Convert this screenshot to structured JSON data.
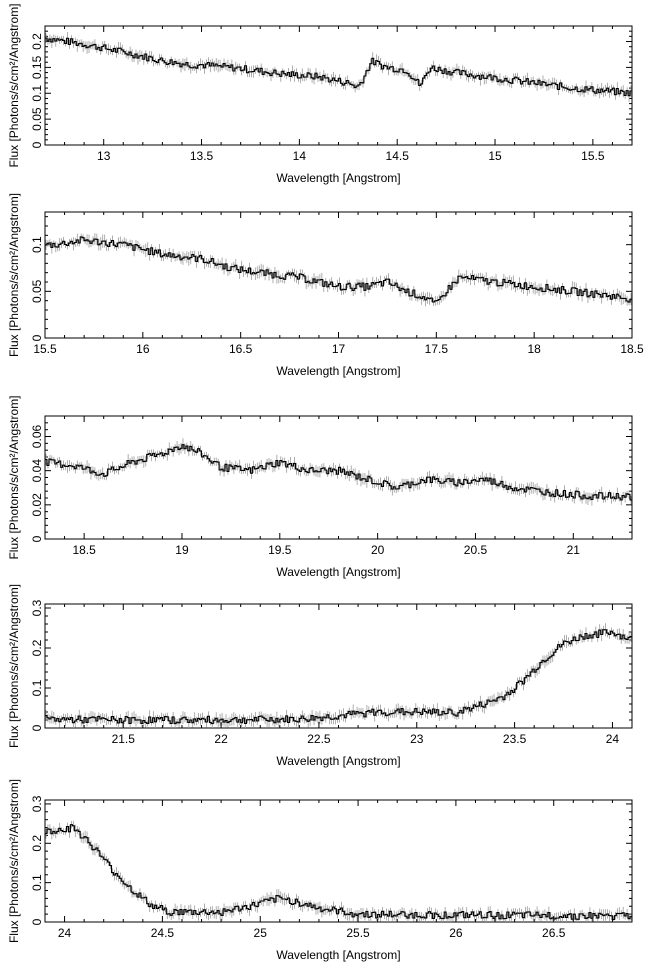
{
  "chart_data": [
    {
      "type": "line",
      "xlabel": "Wavelength [Angstrom]",
      "ylabel": "Flux [Photons/s/cm²/Angstrom]",
      "xlim": [
        12.7,
        15.7
      ],
      "ylim": [
        0,
        0.23
      ],
      "xticks": [
        13,
        13.5,
        14,
        14.5,
        15,
        15.5
      ],
      "yticks": [
        0,
        0.05,
        0.1,
        0.15,
        0.2
      ],
      "grid": false,
      "series": [
        {
          "values": [
            [
              12.7,
              0.207
            ],
            [
              12.9,
              0.195
            ],
            [
              13.1,
              0.18
            ],
            [
              13.3,
              0.163
            ],
            [
              13.45,
              0.155
            ],
            [
              13.5,
              0.155
            ],
            [
              13.7,
              0.148
            ],
            [
              13.9,
              0.138
            ],
            [
              14.1,
              0.132
            ],
            [
              14.25,
              0.12
            ],
            [
              14.3,
              0.112
            ],
            [
              14.33,
              0.13
            ],
            [
              14.37,
              0.162
            ],
            [
              14.45,
              0.15
            ],
            [
              14.55,
              0.145
            ],
            [
              14.62,
              0.115
            ],
            [
              14.67,
              0.15
            ],
            [
              14.8,
              0.14
            ],
            [
              15.0,
              0.13
            ],
            [
              15.2,
              0.12
            ],
            [
              15.4,
              0.11
            ],
            [
              15.55,
              0.105
            ],
            [
              15.7,
              0.1
            ]
          ]
        }
      ]
    },
    {
      "type": "line",
      "xlabel": "Wavelength [Angstrom]",
      "ylabel": "Flux [Photons/s/cm²/Angstrom]",
      "xlim": [
        15.5,
        18.5
      ],
      "ylim": [
        0,
        0.135
      ],
      "xticks": [
        15.5,
        16,
        16.5,
        17,
        17.5,
        18,
        18.5
      ],
      "yticks": [
        0,
        0.05,
        0.1
      ],
      "grid": false,
      "series": [
        {
          "values": [
            [
              15.55,
              0.1
            ],
            [
              15.7,
              0.105
            ],
            [
              15.9,
              0.1
            ],
            [
              16.1,
              0.09
            ],
            [
              16.3,
              0.085
            ],
            [
              16.45,
              0.075
            ],
            [
              16.6,
              0.07
            ],
            [
              16.8,
              0.065
            ],
            [
              17.0,
              0.055
            ],
            [
              17.15,
              0.055
            ],
            [
              17.25,
              0.06
            ],
            [
              17.35,
              0.05
            ],
            [
              17.45,
              0.043
            ],
            [
              17.5,
              0.035
            ],
            [
              17.55,
              0.05
            ],
            [
              17.62,
              0.065
            ],
            [
              17.8,
              0.06
            ],
            [
              18.0,
              0.055
            ],
            [
              18.2,
              0.05
            ],
            [
              18.4,
              0.045
            ],
            [
              18.5,
              0.042
            ]
          ]
        }
      ]
    },
    {
      "type": "line",
      "xlabel": "Wavelength [Angstrom]",
      "ylabel": "Flux [Photons/s/cm²/Angstrom]",
      "xlim": [
        18.3,
        21.3
      ],
      "ylim": [
        0,
        0.072
      ],
      "xticks": [
        18.5,
        19,
        19.5,
        20,
        20.5,
        21
      ],
      "yticks": [
        0,
        0.02,
        0.04,
        0.06
      ],
      "grid": false,
      "series": [
        {
          "values": [
            [
              18.3,
              0.045
            ],
            [
              18.45,
              0.043
            ],
            [
              18.6,
              0.038
            ],
            [
              18.75,
              0.045
            ],
            [
              18.9,
              0.05
            ],
            [
              19.0,
              0.055
            ],
            [
              19.1,
              0.05
            ],
            [
              19.2,
              0.042
            ],
            [
              19.35,
              0.04
            ],
            [
              19.5,
              0.045
            ],
            [
              19.65,
              0.04
            ],
            [
              19.8,
              0.04
            ],
            [
              19.95,
              0.035
            ],
            [
              20.1,
              0.03
            ],
            [
              20.25,
              0.035
            ],
            [
              20.4,
              0.033
            ],
            [
              20.55,
              0.035
            ],
            [
              20.7,
              0.03
            ],
            [
              20.9,
              0.027
            ],
            [
              21.1,
              0.025
            ],
            [
              21.3,
              0.025
            ]
          ]
        }
      ]
    },
    {
      "type": "line",
      "xlabel": "Wavelength [Angstrom]",
      "ylabel": "Flux [Photons/s/cm²/Angstrom]",
      "xlim": [
        21.1,
        24.1
      ],
      "ylim": [
        0,
        0.31
      ],
      "xticks": [
        21.5,
        22,
        22.5,
        23,
        23.5,
        24
      ],
      "yticks": [
        0,
        0.1,
        0.2,
        0.3
      ],
      "grid": false,
      "series": [
        {
          "values": [
            [
              21.1,
              0.022
            ],
            [
              21.5,
              0.02
            ],
            [
              22.0,
              0.02
            ],
            [
              22.4,
              0.022
            ],
            [
              22.6,
              0.03
            ],
            [
              22.8,
              0.04
            ],
            [
              23.0,
              0.04
            ],
            [
              23.2,
              0.038
            ],
            [
              23.35,
              0.06
            ],
            [
              23.45,
              0.08
            ],
            [
              23.55,
              0.12
            ],
            [
              23.65,
              0.17
            ],
            [
              23.75,
              0.21
            ],
            [
              23.85,
              0.23
            ],
            [
              24.0,
              0.24
            ],
            [
              24.1,
              0.22
            ]
          ]
        }
      ]
    },
    {
      "type": "line",
      "xlabel": "Wavelength [Angstrom]",
      "ylabel": "Flux [Photons/s/cm²/Angstrom]",
      "xlim": [
        23.9,
        26.9
      ],
      "ylim": [
        0,
        0.31
      ],
      "xticks": [
        24,
        24.5,
        25,
        25.5,
        26,
        26.5
      ],
      "yticks": [
        0,
        0.1,
        0.2,
        0.3
      ],
      "grid": false,
      "series": [
        {
          "values": [
            [
              23.9,
              0.23
            ],
            [
              24.05,
              0.24
            ],
            [
              24.15,
              0.19
            ],
            [
              24.25,
              0.13
            ],
            [
              24.35,
              0.08
            ],
            [
              24.45,
              0.04
            ],
            [
              24.55,
              0.025
            ],
            [
              24.8,
              0.025
            ],
            [
              24.95,
              0.04
            ],
            [
              25.1,
              0.06
            ],
            [
              25.2,
              0.05
            ],
            [
              25.3,
              0.035
            ],
            [
              25.5,
              0.02
            ],
            [
              25.8,
              0.018
            ],
            [
              26.2,
              0.017
            ],
            [
              26.6,
              0.016
            ],
            [
              26.9,
              0.015
            ]
          ]
        }
      ]
    }
  ]
}
